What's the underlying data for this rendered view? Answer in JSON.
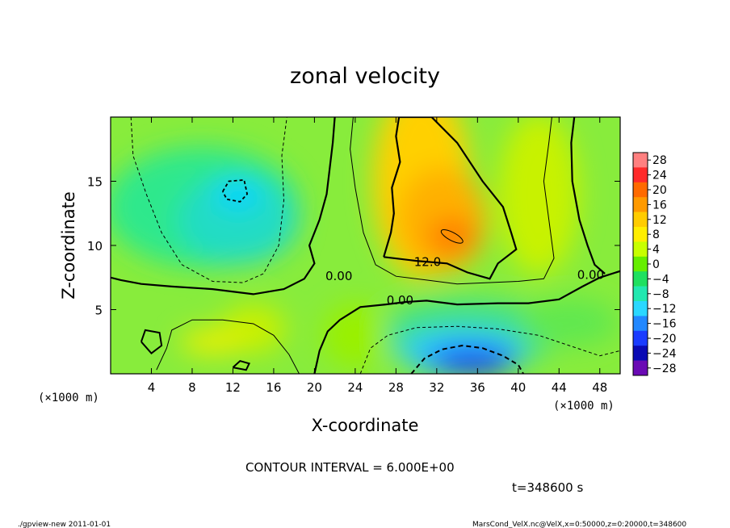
{
  "chart_data": {
    "type": "heatmap",
    "title": "zonal velocity",
    "xlabel": "X-coordinate",
    "ylabel": "Z-coordinate",
    "x_unit_label": "(×1000 m)",
    "y_unit_label": "(×1000 m)",
    "xlim": [
      0,
      50
    ],
    "ylim": [
      0,
      20
    ],
    "x_ticks": [
      4,
      8,
      12,
      16,
      20,
      24,
      28,
      32,
      36,
      40,
      44,
      48
    ],
    "x_tick_labels": [
      "4",
      "8",
      "12",
      "16",
      "20",
      "24",
      "28",
      "32",
      "36",
      "40",
      "44",
      "48"
    ],
    "y_ticks": [
      5,
      10,
      15
    ],
    "y_tick_labels": [
      "5",
      "10",
      "15"
    ],
    "colorbar": {
      "levels": [
        28,
        24,
        20,
        16,
        12,
        8,
        4,
        0,
        -4,
        -8,
        -12,
        -16,
        -20,
        -24,
        -28
      ],
      "labels": [
        "28",
        "24",
        "20",
        "16",
        "12",
        "8",
        "4",
        "0",
        "−4",
        "−8",
        "−12",
        "−16",
        "−20",
        "−24",
        "−28"
      ],
      "colors": [
        "#ff8080",
        "#ff2a2a",
        "#ff6a00",
        "#ff9a00",
        "#ffcc00",
        "#ffee00",
        "#c8ff00",
        "#66ee00",
        "#1fe060",
        "#22e8b0",
        "#2ad8ff",
        "#2288ff",
        "#1a3cff",
        "#0a0ab4",
        "#6a0ab4"
      ],
      "range": [
        -30,
        30
      ]
    },
    "contour_labels": [
      {
        "text": "0.00",
        "x": 22.4,
        "y": 7.3
      },
      {
        "text": "0.00",
        "x": 28.4,
        "y": 5.4
      },
      {
        "text": "12.0",
        "x": 31.1,
        "y": 8.4
      },
      {
        "text": "0.00",
        "x": 47.1,
        "y": 7.4
      }
    ],
    "features": [
      {
        "name": "jet-core",
        "x": 33.5,
        "y": 10.7,
        "value": 18
      },
      {
        "name": "negative-low",
        "x": 35,
        "y": 1.5,
        "value": -20
      },
      {
        "name": "upper-left-low",
        "x": 12.5,
        "y": 14,
        "value": -10
      }
    ]
  },
  "annotations": {
    "contour_interval": "CONTOUR INTERVAL = 6.000E+00",
    "time": "t=348600 s",
    "footer_left": "./gpview-new  2011-01-01",
    "footer_right": "MarsCond_VelX.nc@VelX,x=0:50000,z=0:20000,t=348600"
  }
}
